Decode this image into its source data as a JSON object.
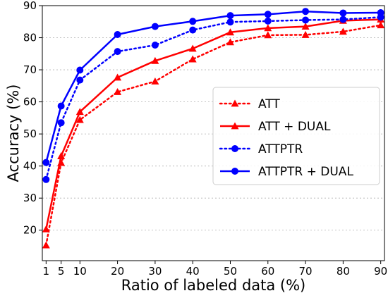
{
  "chart_data": {
    "type": "line",
    "x": [
      1,
      5,
      10,
      20,
      30,
      40,
      50,
      60,
      70,
      80,
      90
    ],
    "series": [
      {
        "name": "ATT",
        "color": "#ff0000",
        "style": "dotted",
        "marker": "triangle",
        "values": [
          15.3,
          41.0,
          54.4,
          63.1,
          66.4,
          73.3,
          78.6,
          80.8,
          80.9,
          81.9,
          83.9
        ]
      },
      {
        "name": "ATT + DUAL",
        "color": "#ff0000",
        "style": "solid",
        "marker": "triangle",
        "values": [
          20.3,
          43.1,
          56.9,
          67.6,
          72.8,
          76.6,
          81.7,
          83.0,
          83.5,
          85.3,
          85.7
        ]
      },
      {
        "name": "ATTPTR",
        "color": "#0000ff",
        "style": "dotted",
        "marker": "circle",
        "values": [
          35.8,
          53.5,
          66.8,
          75.7,
          77.7,
          82.4,
          84.9,
          85.2,
          85.5,
          85.7,
          86.4
        ]
      },
      {
        "name": "ATTPTR + DUAL",
        "color": "#0000ff",
        "style": "solid",
        "marker": "circle",
        "values": [
          41.1,
          58.7,
          69.9,
          81.0,
          83.5,
          85.1,
          86.9,
          87.3,
          88.2,
          87.7,
          87.8
        ]
      }
    ],
    "xlabel": "Ratio of labeled data (%)",
    "ylabel": "Accuracy (%)",
    "xticks": [
      1,
      5,
      10,
      20,
      30,
      40,
      50,
      60,
      70,
      80,
      90
    ],
    "yticks": [
      20,
      30,
      40,
      50,
      60,
      70,
      80,
      90
    ],
    "xlim": [
      0,
      91
    ],
    "ylim": [
      10.5,
      90
    ],
    "grid": "horizontal dotted",
    "legend_position": "center-right"
  }
}
